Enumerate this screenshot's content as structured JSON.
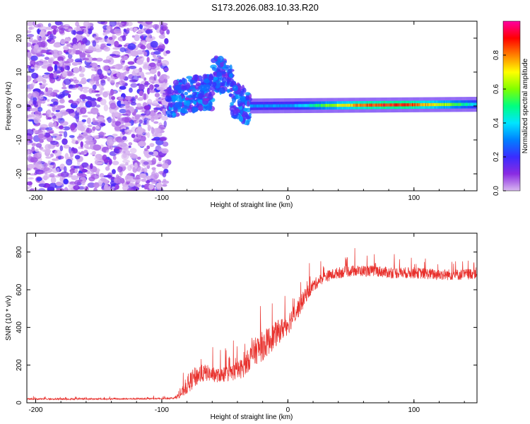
{
  "title": "S173.2026.083.10.33.R20",
  "colors": {
    "snr_line": "#e8302c",
    "axis": "#000000",
    "background": "#ffffff"
  },
  "chart_data": [
    {
      "type": "heatmap",
      "id": "spectrogram",
      "title": "",
      "xlabel": "Height of straight line (km)",
      "ylabel": "Frequency (Hz)",
      "xlim": [
        -207,
        150
      ],
      "ylim": [
        -25,
        25
      ],
      "xticks": [
        -200,
        -100,
        0,
        100
      ],
      "xtick_labels": [
        "-200",
        "-100",
        "0",
        "100"
      ],
      "yticks": [
        20,
        10,
        0,
        -10,
        -20
      ],
      "ytick_labels": [
        "20",
        "10",
        "0",
        "-10",
        "-20"
      ],
      "colorbar": {
        "label": "Normalized spectral amplitude",
        "range": [
          0,
          1
        ],
        "ticks": [
          0.0,
          0.2,
          0.4,
          0.6,
          0.8
        ],
        "tick_labels": [
          "0.0",
          "0.2",
          "0.4",
          "0.6",
          "0.8"
        ],
        "colormap": [
          "#d9b8f0",
          "#8a2be2",
          "#3a2cff",
          "#0080ff",
          "#00e5ff",
          "#00ff80",
          "#80ff00",
          "#ffff00",
          "#ff8000",
          "#ff0000",
          "#ff00a0"
        ]
      },
      "regions": [
        {
          "name": "noise",
          "x_range": [
            -207,
            -95
          ],
          "freq_range": [
            -25,
            25
          ],
          "amplitude_range": [
            0.0,
            0.2
          ]
        },
        {
          "name": "transition",
          "x_range": [
            -95,
            -30
          ],
          "freq_range": [
            -8,
            12
          ],
          "amplitude_range": [
            0.1,
            0.35
          ]
        },
        {
          "name": "tone",
          "x_range": [
            -30,
            150
          ],
          "freq_center": [
            0,
            0.5
          ],
          "amplitude_peak": 0.95,
          "peak_x": 80
        }
      ]
    },
    {
      "type": "line",
      "id": "snr",
      "title": "",
      "xlabel": "Height of straight line (km)",
      "ylabel": "SNR (10 * v/v)",
      "xlim": [
        -207,
        150
      ],
      "ylim": [
        0,
        900
      ],
      "xticks": [
        -200,
        -100,
        0,
        100
      ],
      "xtick_labels": [
        "-200",
        "-100",
        "0",
        "100"
      ],
      "yticks": [
        0,
        200,
        400,
        600,
        800
      ],
      "ytick_labels": [
        "0",
        "200",
        "400",
        "600",
        "800"
      ],
      "series": [
        {
          "name": "SNR",
          "x": [
            -207,
            -150,
            -100,
            -90,
            -85,
            -80,
            -75,
            -70,
            -65,
            -60,
            -55,
            -50,
            -45,
            -40,
            -35,
            -30,
            -25,
            -20,
            -15,
            -10,
            -5,
            0,
            5,
            10,
            15,
            20,
            25,
            30,
            40,
            50,
            60,
            70,
            80,
            90,
            100,
            110,
            120,
            130,
            140,
            150
          ],
          "values": [
            20,
            20,
            22,
            25,
            45,
            90,
            130,
            150,
            160,
            150,
            145,
            150,
            160,
            170,
            190,
            240,
            280,
            300,
            330,
            360,
            390,
            420,
            470,
            520,
            580,
            620,
            650,
            670,
            690,
            700,
            700,
            700,
            690,
            690,
            690,
            685,
            680,
            680,
            680,
            690
          ],
          "spread": [
            8,
            8,
            8,
            10,
            40,
            90,
            110,
            100,
            90,
            80,
            75,
            80,
            90,
            100,
            110,
            130,
            150,
            160,
            150,
            140,
            120,
            120,
            110,
            100,
            80,
            70,
            60,
            60,
            60,
            60,
            60,
            60,
            60,
            60,
            60,
            60,
            60,
            60,
            60,
            60
          ]
        }
      ]
    }
  ]
}
